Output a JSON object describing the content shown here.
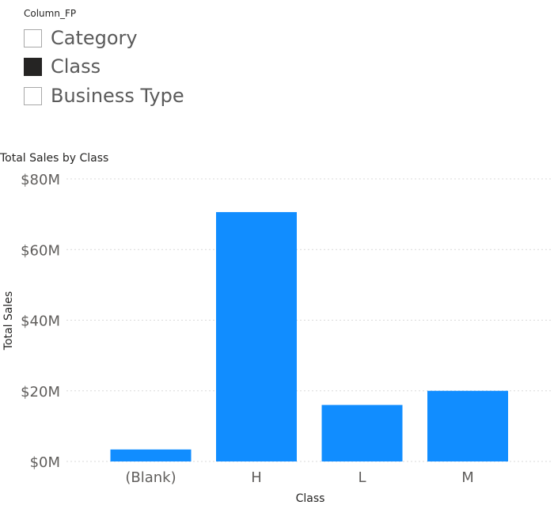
{
  "slicer": {
    "title": "Column_FP",
    "items": [
      {
        "label": "Category",
        "checked": false
      },
      {
        "label": "Class",
        "checked": true
      },
      {
        "label": "Business Type",
        "checked": false
      }
    ]
  },
  "chart_data": {
    "type": "bar",
    "title": "Total Sales by Class",
    "xlabel": "Class",
    "ylabel": "Total Sales",
    "categories": [
      "(Blank)",
      "H",
      "L",
      "M"
    ],
    "values": [
      3.4,
      70.6,
      16.0,
      20.0
    ],
    "value_unit": "millions USD",
    "ylim": [
      0,
      80
    ],
    "yticks": [
      0,
      20,
      40,
      60,
      80
    ],
    "ytick_labels": [
      "$0M",
      "$20M",
      "$40M",
      "$60M",
      "$80M"
    ],
    "grid": true,
    "legend": "none",
    "colors": {
      "bar": "#118DFF",
      "grid": "#d9d9d9",
      "axis_text": "#605e5c",
      "title_text": "#252423"
    }
  }
}
